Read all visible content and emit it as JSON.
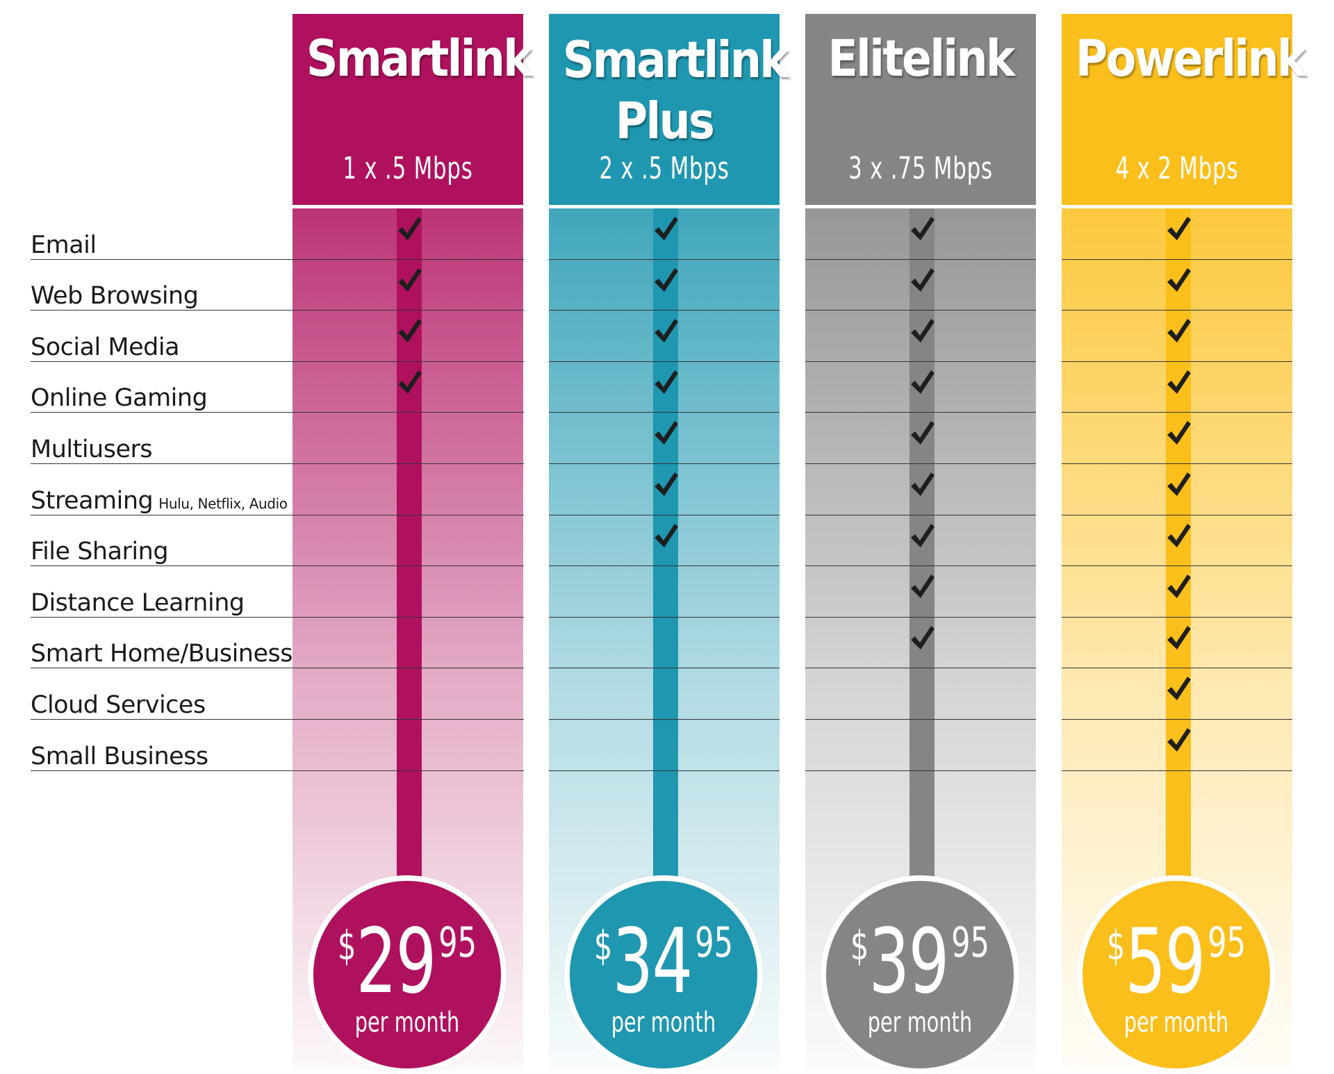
{
  "features": [
    {
      "label": "Email"
    },
    {
      "label": "Web Browsing"
    },
    {
      "label": "Social Media"
    },
    {
      "label": "Online Gaming"
    },
    {
      "label": "Multiusers"
    },
    {
      "label": "Streaming",
      "note": "Hulu, Netflix, Audio"
    },
    {
      "label": "File Sharing"
    },
    {
      "label": "Distance Learning"
    },
    {
      "label": "Smart Home/Business"
    },
    {
      "label": "Cloud Services"
    },
    {
      "label": "Small Business"
    }
  ],
  "plans": [
    {
      "name_line1": "Smartlink",
      "name_line2": "",
      "speed": "1 x .5 Mbps",
      "currency": "$",
      "price_dollars": "29",
      "price_cents": "95",
      "period": "per month",
      "color": "#b0115e",
      "fade_color": "#b0115e",
      "included_count": 4
    },
    {
      "name_line1": "Smartlink",
      "name_line2": "Plus",
      "speed": "2 x .5 Mbps",
      "currency": "$",
      "price_dollars": "34",
      "price_cents": "95",
      "period": "per month",
      "color": "#1f97b0",
      "fade_color": "#1f97b0",
      "included_count": 7
    },
    {
      "name_line1": "Elitelink",
      "name_line2": "",
      "speed": "3 x .75 Mbps",
      "currency": "$",
      "price_dollars": "39",
      "price_cents": "95",
      "period": "per month",
      "color": "#858585",
      "fade_color": "#858585",
      "included_count": 9
    },
    {
      "name_line1": "Powerlink",
      "name_line2": "",
      "speed": "4 x 2 Mbps",
      "currency": "$",
      "price_dollars": "59",
      "price_cents": "95",
      "period": "per month",
      "color": "#fbbf1c",
      "fade_color": "#fbbf1c",
      "included_count": 11
    }
  ]
}
